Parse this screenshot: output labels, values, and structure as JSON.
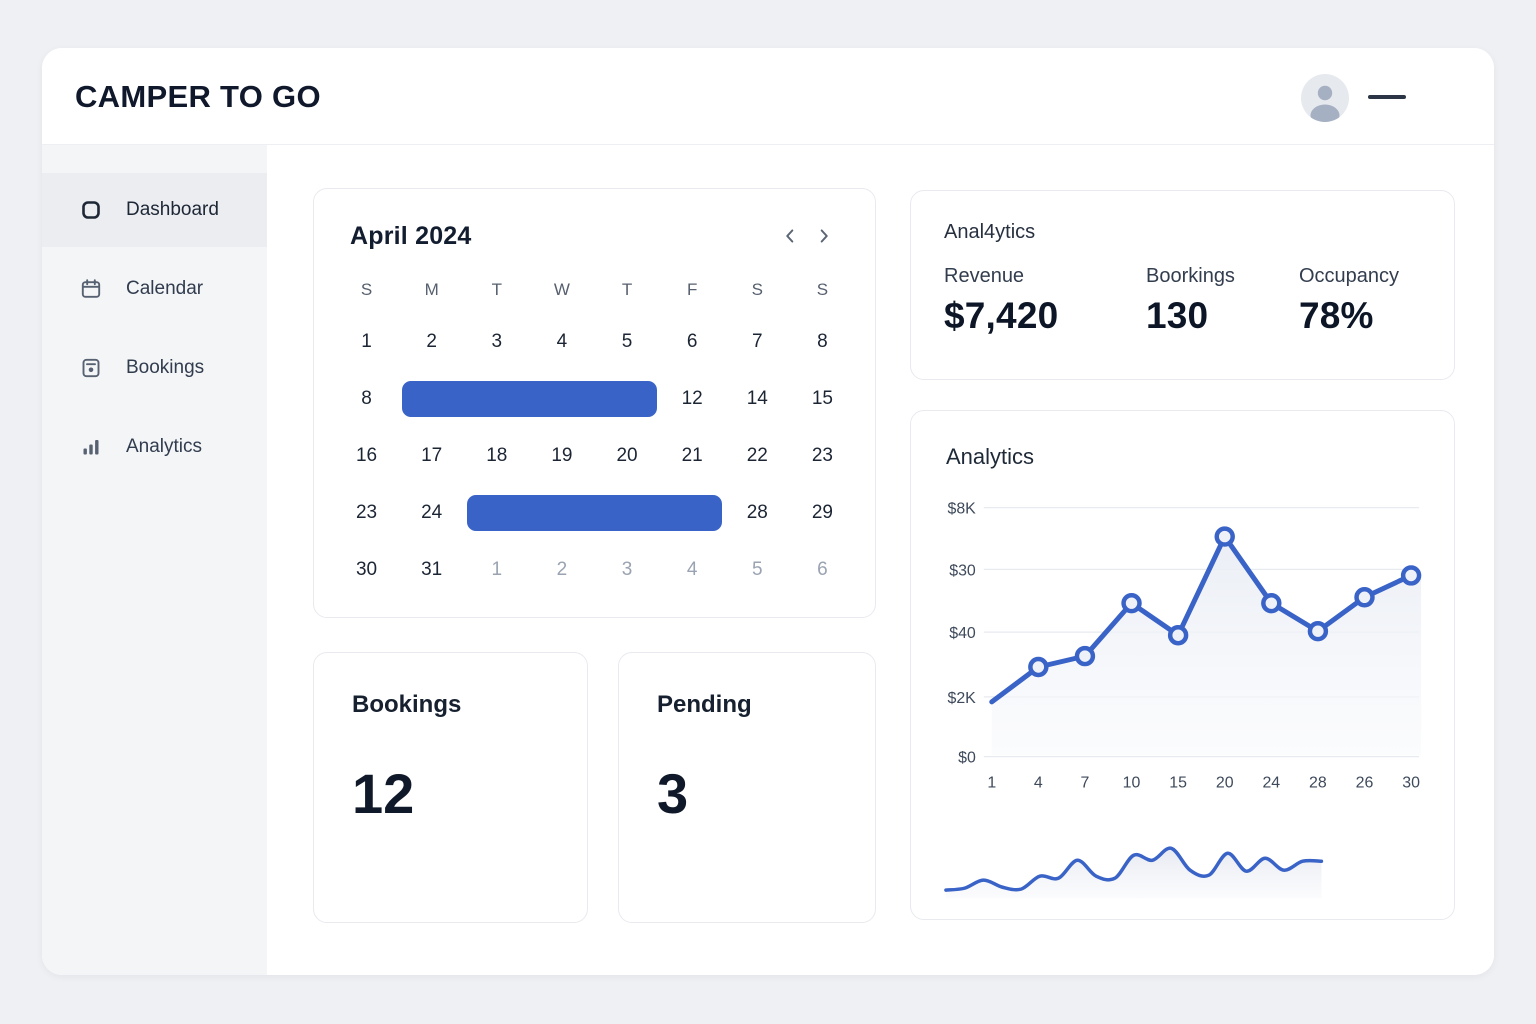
{
  "header": {
    "logo": "CAMPER TO GO"
  },
  "sidebar": {
    "items": [
      {
        "label": "Dashboard",
        "icon": "dashboard-icon",
        "active": true
      },
      {
        "label": "Calendar",
        "icon": "calendar-icon",
        "active": false
      },
      {
        "label": "Bookings",
        "icon": "bookings-icon",
        "active": false
      },
      {
        "label": "Analytics",
        "icon": "analytics-icon",
        "active": false
      }
    ]
  },
  "calendar": {
    "title": "April 2024",
    "weekdays": [
      "S",
      "M",
      "T",
      "W",
      "T",
      "F",
      "S",
      "S"
    ],
    "rows": [
      [
        {
          "d": "1"
        },
        {
          "d": "2"
        },
        {
          "d": "3"
        },
        {
          "d": "4"
        },
        {
          "d": "5"
        },
        {
          "d": "6"
        },
        {
          "d": "7"
        },
        {
          "d": "8"
        }
      ],
      [
        {
          "d": "8"
        },
        {
          "bar": 4
        },
        {
          "d": "12"
        },
        {
          "d": "14"
        },
        {
          "d": "15"
        }
      ],
      [
        {
          "d": "16"
        },
        {
          "d": "17"
        },
        {
          "d": "18"
        },
        {
          "d": "19"
        },
        {
          "d": "20"
        },
        {
          "d": "21"
        },
        {
          "d": "22"
        },
        {
          "d": "23"
        }
      ],
      [
        {
          "d": "23"
        },
        {
          "d": "24"
        },
        {
          "bar": 4
        },
        {
          "d": "28"
        },
        {
          "d": "29"
        }
      ],
      [
        {
          "d": "30"
        },
        {
          "d": "31"
        },
        {
          "d": "1",
          "muted": true
        },
        {
          "d": "2",
          "muted": true
        },
        {
          "d": "3",
          "muted": true
        },
        {
          "d": "4",
          "muted": true
        },
        {
          "d": "5",
          "muted": true
        },
        {
          "d": "6",
          "muted": true
        }
      ]
    ]
  },
  "stats": {
    "title": "Anal4ytics",
    "items": [
      {
        "label": "Revenue",
        "value": "$7,420"
      },
      {
        "label": "Boorkings",
        "value": "130"
      },
      {
        "label": "Occupancy",
        "value": "78%"
      }
    ]
  },
  "analytics": {
    "title": "Analytics"
  },
  "cards": {
    "bookings": {
      "label": "Bookings",
      "value": "12"
    },
    "pending": {
      "label": "Pending",
      "value": "3"
    }
  },
  "colors": {
    "accent": "#3a63c7",
    "grid": "#e7eaef",
    "marker_fill": "#eef1f7",
    "area_top": "#e9edf4",
    "area_bottom": "#f8f9fc"
  },
  "chart_data": [
    {
      "type": "line",
      "title": "Analytics",
      "x_labels": [
        "1",
        "4",
        "7",
        "10",
        "15",
        "20",
        "24",
        "28",
        "26",
        "30"
      ],
      "values": [
        1760,
        2880,
        3230,
        4930,
        3900,
        7070,
        4930,
        4030,
        5120,
        5820
      ],
      "y_ticks": [
        "$8K",
        "$30",
        "$40",
        "$2K",
        "$0"
      ],
      "ylim": [
        0,
        8000
      ],
      "grid": true,
      "legend": "none",
      "markers_on_all_but_first": true
    },
    {
      "type": "area",
      "title": "mini trend sparkline",
      "values_norm": [
        0.885,
        0.846,
        0.692,
        0.827,
        0.865,
        0.615,
        0.654,
        0.308,
        0.615,
        0.654,
        0.212,
        0.308,
        0.077,
        0.5,
        0.596,
        0.173,
        0.519,
        0.269,
        0.5,
        0.327,
        0.327
      ]
    }
  ]
}
